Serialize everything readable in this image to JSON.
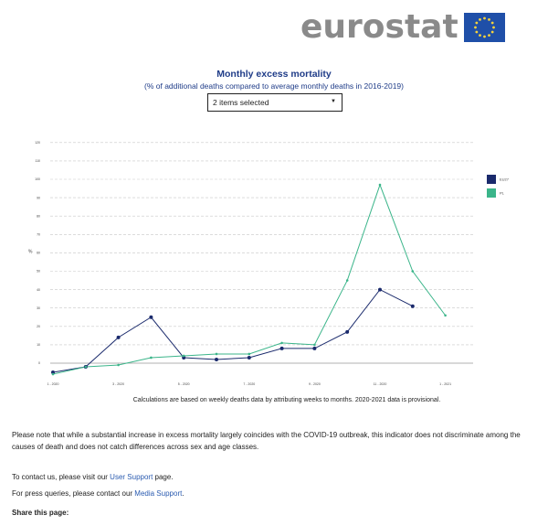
{
  "logo": {
    "text": "eurostat",
    "flag_icon": "eu-flag-icon"
  },
  "header": {
    "title": "Monthly excess mortality",
    "subtitle": "(% of additional deaths compared to average monthly deaths in 2016-2019)"
  },
  "selector": {
    "value": "2 items selected",
    "icon": "caret-down-icon"
  },
  "chart_data": {
    "type": "line",
    "ylabel": "%",
    "ylim": [
      -10,
      120
    ],
    "yticks": [
      0,
      10,
      20,
      30,
      40,
      50,
      60,
      70,
      80,
      90,
      100,
      110,
      120
    ],
    "grid": true,
    "legend_position": "right",
    "x_tick_labels": [
      "1 - 2020",
      "3 - 2020",
      "5 - 2020",
      "7 - 2020",
      "9 - 2020",
      "11 - 2020",
      "1 - 2021"
    ],
    "categories": [
      "1 - 2020",
      "2 - 2020",
      "3 - 2020",
      "4 - 2020",
      "5 - 2020",
      "6 - 2020",
      "7 - 2020",
      "8 - 2020",
      "9 - 2020",
      "10 - 2020",
      "11 - 2020",
      "12 - 2020",
      "1 - 2021"
    ],
    "series": [
      {
        "name": "EU27",
        "color": "#1a2a6c",
        "values": [
          -5,
          -2,
          14,
          25,
          3,
          2,
          3,
          8,
          8,
          17,
          40,
          31,
          null
        ]
      },
      {
        "name": "PL",
        "color": "#3bb58a",
        "values": [
          -6,
          -2,
          -1,
          3,
          4,
          5,
          5,
          11,
          10,
          45,
          97,
          50,
          26
        ]
      }
    ],
    "footnote": "Calculations are based on weekly deaths data by attributing weeks to months. 2020-2021 data is provisional."
  },
  "note": "Please note that while a substantial increase in excess mortality largely coincides with the COVID-19 outbreak, this indicator does not discriminate among the causes of death and does not catch differences across sex and age classes.",
  "contact": {
    "line1_prefix": "To contact us, please visit our ",
    "line1_link": "User Support",
    "line1_suffix": " page.",
    "line2_prefix": "For press queries, please contact our ",
    "line2_link": "Media Support",
    "line2_suffix": "."
  },
  "share_label": "Share this page:"
}
